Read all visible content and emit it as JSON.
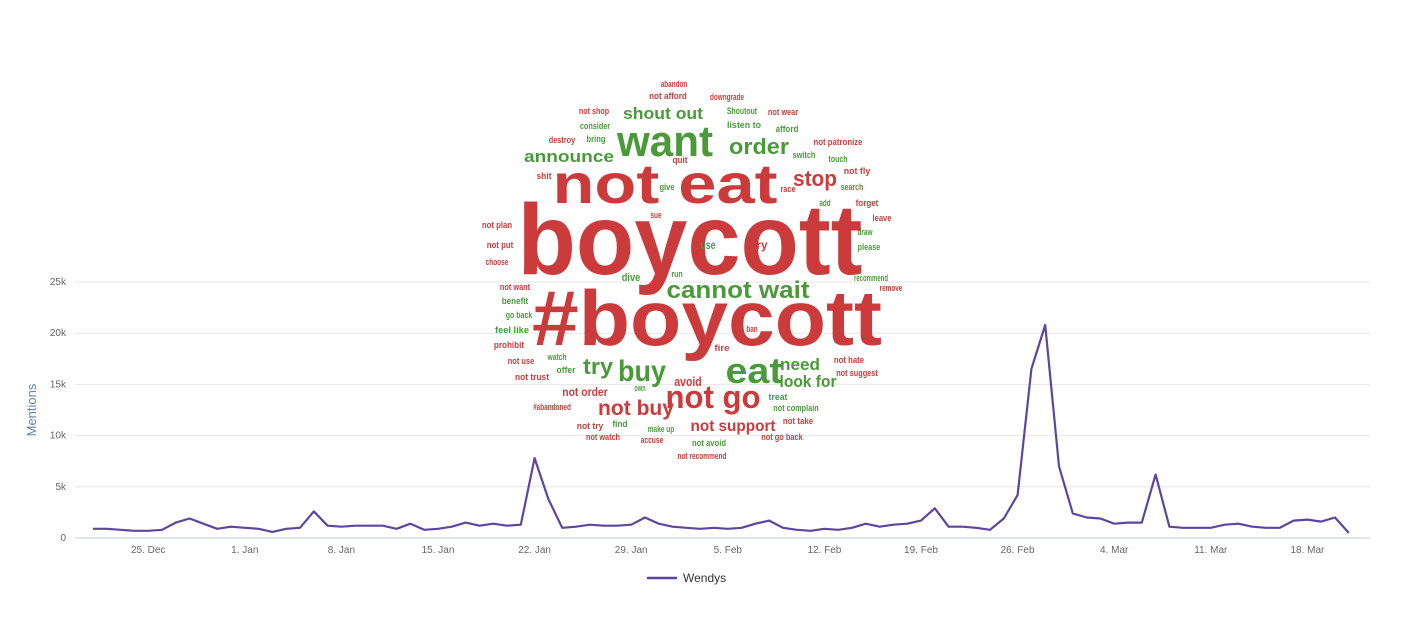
{
  "chart_data": {
    "type": "line",
    "categories": [
      null,
      null,
      null,
      null,
      "25. Dec",
      null,
      null,
      null,
      null,
      null,
      null,
      "1. Jan",
      null,
      null,
      null,
      null,
      null,
      null,
      "8. Jan",
      null,
      null,
      null,
      null,
      null,
      null,
      "15. Jan",
      null,
      null,
      null,
      null,
      null,
      null,
      "22. Jan",
      null,
      null,
      null,
      null,
      null,
      null,
      "29. Jan",
      null,
      null,
      null,
      null,
      null,
      null,
      "5. Feb",
      null,
      null,
      null,
      null,
      null,
      null,
      "12. Feb",
      null,
      null,
      null,
      null,
      null,
      null,
      "19. Feb",
      null,
      null,
      null,
      null,
      null,
      null,
      "26. Feb",
      null,
      null,
      null,
      null,
      null,
      null,
      "4. Mar",
      null,
      null,
      null,
      null,
      null,
      null,
      "11. Mar",
      null,
      null,
      null,
      null,
      null,
      null,
      "18. Mar",
      null,
      null,
      null
    ],
    "series": [
      {
        "name": "Wendys",
        "color": "#5b46a0",
        "values": [
          900,
          900,
          800,
          700,
          700,
          800,
          1500,
          1900,
          1400,
          900,
          1100,
          1000,
          900,
          600,
          900,
          1000,
          2600,
          1200,
          1100,
          1200,
          1200,
          1200,
          900,
          1400,
          800,
          900,
          1100,
          1500,
          1200,
          1400,
          1200,
          1300,
          7800,
          3800,
          1000,
          1100,
          1300,
          1200,
          1200,
          1300,
          2000,
          1400,
          1100,
          1000,
          900,
          1000,
          900,
          1000,
          1400,
          1700,
          1000,
          800,
          700,
          900,
          800,
          1000,
          1400,
          1100,
          1300,
          1400,
          1700,
          2900,
          1100,
          1100,
          1000,
          800,
          1900,
          4200,
          16500,
          20800,
          7000,
          2400,
          2000,
          1900,
          1400,
          1500,
          1500,
          6200,
          1100,
          1000,
          1000,
          1000,
          1300,
          1400,
          1100,
          1000,
          1000,
          1700,
          1800,
          1600,
          2000,
          500
        ]
      }
    ],
    "y_label": "Mentions",
    "ylim": [
      0,
      25000
    ],
    "yticks": [
      0,
      {
        "value": 5000,
        "label": "5k"
      },
      {
        "value": 10000,
        "label": "10k"
      },
      {
        "value": 15000,
        "label": "15k"
      },
      {
        "value": 20000,
        "label": "20k"
      },
      {
        "value": 25000,
        "label": "25k"
      }
    ],
    "grid": true,
    "legend": "bottom"
  },
  "word_cloud": {
    "words": [
      {
        "text": "abandon",
        "color": "#cc3b3b"
      },
      {
        "text": "not afford",
        "color": "#cc3b3b"
      },
      {
        "text": "downgrade",
        "color": "#cc3b3b"
      },
      {
        "text": "not shop",
        "color": "#cc3b3b"
      },
      {
        "text": "shout out",
        "color": "#4a9a3a"
      },
      {
        "text": "Shoutout",
        "color": "#4a9a3a"
      },
      {
        "text": "not wear",
        "color": "#cc3b3b"
      },
      {
        "text": "consider",
        "color": "#4a9a3a"
      },
      {
        "text": "listen to",
        "color": "#4a9a3a"
      },
      {
        "text": "afford",
        "color": "#4a9a3a"
      },
      {
        "text": "bring",
        "color": "#4a9a3a"
      },
      {
        "text": "destroy",
        "color": "#cc3b3b"
      },
      {
        "text": "want",
        "color": "#4a9a3a"
      },
      {
        "text": "announce",
        "color": "#4a9a3a"
      },
      {
        "text": "order",
        "color": "#4a9a3a"
      },
      {
        "text": "not patronize",
        "color": "#cc3b3b"
      },
      {
        "text": "switch",
        "color": "#4a9a3a"
      },
      {
        "text": "touch",
        "color": "#4a9a3a"
      },
      {
        "text": "quit",
        "color": "#cc3b3b"
      },
      {
        "text": "not fly",
        "color": "#cc3b3b"
      },
      {
        "text": "shit",
        "color": "#cc3b3b"
      },
      {
        "text": "not eat",
        "color": "#cc3b3b"
      },
      {
        "text": "stop",
        "color": "#cc3b3b"
      },
      {
        "text": "race",
        "color": "#cc3b3b"
      },
      {
        "text": "search",
        "color": "#4a9a3a"
      },
      {
        "text": "give",
        "color": "#4a9a3a"
      },
      {
        "text": "add",
        "color": "#4a9a3a"
      },
      {
        "text": "forget",
        "color": "#cc3b3b"
      },
      {
        "text": "sue",
        "color": "#cc3b3b"
      },
      {
        "text": "leave",
        "color": "#cc3b3b"
      },
      {
        "text": "not plan",
        "color": "#cc3b3b"
      },
      {
        "text": "draw",
        "color": "#4a9a3a"
      },
      {
        "text": "boycott",
        "color": "#cc3b3b"
      },
      {
        "text": "not put",
        "color": "#cc3b3b"
      },
      {
        "text": "use",
        "color": "#4a9a3a"
      },
      {
        "text": "try",
        "color": "#cc3b3b"
      },
      {
        "text": "please",
        "color": "#4a9a3a"
      },
      {
        "text": "choose",
        "color": "#cc3b3b"
      },
      {
        "text": "dive",
        "color": "#4a9a3a"
      },
      {
        "text": "run",
        "color": "#4a9a3a"
      },
      {
        "text": "cannot wait",
        "color": "#4a9a3a"
      },
      {
        "text": "recommend",
        "color": "#4a9a3a"
      },
      {
        "text": "remove",
        "color": "#cc3b3b"
      },
      {
        "text": "not want",
        "color": "#cc3b3b"
      },
      {
        "text": "benefit",
        "color": "#4a9a3a"
      },
      {
        "text": "go back",
        "color": "#4a9a3a"
      },
      {
        "text": "#boycott",
        "color": "#cc3b3b"
      },
      {
        "text": "feel like",
        "color": "#4a9a3a"
      },
      {
        "text": "prohibit",
        "color": "#cc3b3b"
      },
      {
        "text": "ban",
        "color": "#cc3b3b"
      },
      {
        "text": "fire",
        "color": "#cc3b3b"
      },
      {
        "text": "need",
        "color": "#4a9a3a"
      },
      {
        "text": "watch",
        "color": "#4a9a3a"
      },
      {
        "text": "not hate",
        "color": "#cc3b3b"
      },
      {
        "text": "not use",
        "color": "#cc3b3b"
      },
      {
        "text": "try",
        "color": "#4a9a3a"
      },
      {
        "text": "buy",
        "color": "#4a9a3a"
      },
      {
        "text": "eat",
        "color": "#4a9a3a"
      },
      {
        "text": "offer",
        "color": "#4a9a3a"
      },
      {
        "text": "not suggest",
        "color": "#cc3b3b"
      },
      {
        "text": "not trust",
        "color": "#cc3b3b"
      },
      {
        "text": "look for",
        "color": "#4a9a3a"
      },
      {
        "text": "avoid",
        "color": "#cc3b3b"
      },
      {
        "text": "own",
        "color": "#4a9a3a"
      },
      {
        "text": "not order",
        "color": "#cc3b3b"
      },
      {
        "text": "not go",
        "color": "#cc3b3b"
      },
      {
        "text": "treat",
        "color": "#4a9a3a"
      },
      {
        "text": "#abandoned",
        "color": "#cc3b3b"
      },
      {
        "text": "not buy",
        "color": "#cc3b3b"
      },
      {
        "text": "not complain",
        "color": "#4a9a3a"
      },
      {
        "text": "not support",
        "color": "#cc3b3b"
      },
      {
        "text": "not take",
        "color": "#cc3b3b"
      },
      {
        "text": "not try",
        "color": "#cc3b3b"
      },
      {
        "text": "find",
        "color": "#4a9a3a"
      },
      {
        "text": "make up",
        "color": "#4a9a3a"
      },
      {
        "text": "not watch",
        "color": "#cc3b3b"
      },
      {
        "text": "accuse",
        "color": "#cc3b3b"
      },
      {
        "text": "not avoid",
        "color": "#4a9a3a"
      },
      {
        "text": "not go back",
        "color": "#cc3b3b"
      },
      {
        "text": "not recommend",
        "color": "#cc3b3b"
      }
    ]
  }
}
